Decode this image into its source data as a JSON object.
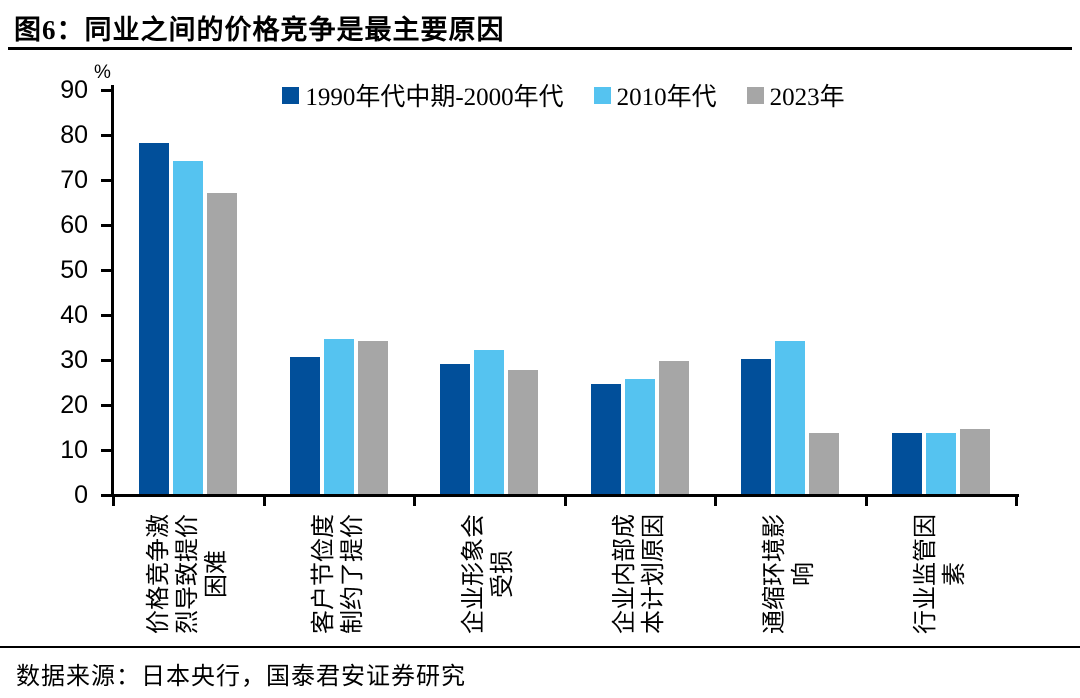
{
  "figure": {
    "title": "图6：同业之间的价格竞争是最主要原因",
    "source": "数据来源：日本央行，国泰君安证券研究"
  },
  "chart_data": {
    "type": "bar",
    "title": "图6：同业之间的价格竞争是最主要原因",
    "unit_label": "%",
    "ylabel": "%",
    "xlabel": "",
    "ylim": [
      0,
      90
    ],
    "ytick_step": 10,
    "grid": false,
    "legend_position": "top-center",
    "categories": [
      "价格竞争激烈导致提价困难",
      "客户节俭度制约了提价",
      "企业形象会受损",
      "企业内部成本计划原因",
      "通缩环境影响",
      "行业监管因素"
    ],
    "category_lines": [
      [
        "价格竞争激",
        "烈导致提价",
        "困难"
      ],
      [
        "客户节俭度",
        "制约了提价"
      ],
      [
        "企业形象会",
        "受损"
      ],
      [
        "企业内部成",
        "本计划原因"
      ],
      [
        "通缩环境影",
        "响"
      ],
      [
        "行业监管因",
        "素"
      ]
    ],
    "series": [
      {
        "name": "1990年代中期-2000年代",
        "color": "#014F9A",
        "values": [
          78,
          30.5,
          29,
          24.5,
          30,
          13.5
        ]
      },
      {
        "name": "2010年代",
        "color": "#55C3F0",
        "values": [
          74,
          34.5,
          32,
          25.5,
          34,
          13.5
        ]
      },
      {
        "name": "2023年",
        "color": "#A6A6A6",
        "values": [
          67,
          34,
          27.5,
          29.5,
          13.5,
          14.5
        ]
      }
    ],
    "axis_color": "#000000"
  }
}
